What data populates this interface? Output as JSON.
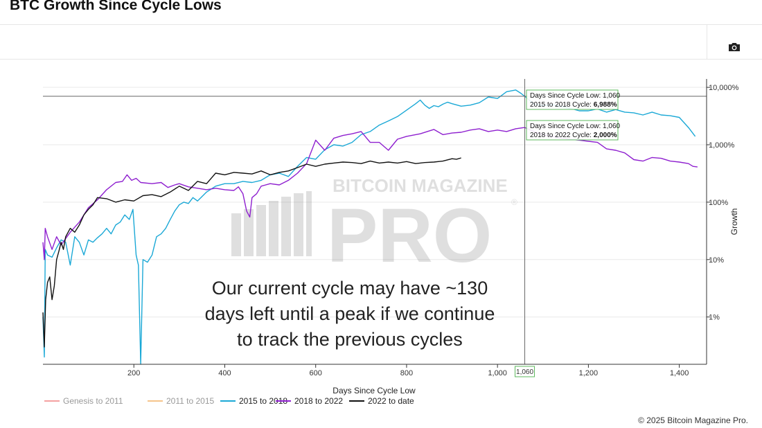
{
  "page": {
    "title": "BTC Growth Since Cycle Lows",
    "footer": "© 2025 Bitcoin Magazine Pro."
  },
  "toolbar": {
    "camera_icon": "camera-icon"
  },
  "watermark": {
    "line1": "BITCOIN MAGAZINE",
    "line2": "PRO",
    "mark": "®"
  },
  "annotation": {
    "lines": [
      "Our current cycle may have ~130",
      "days left until a peak if we continue",
      "to track the previous cycles"
    ]
  },
  "tooltips": [
    {
      "line1": "Days Since Cycle Low: 1,060",
      "line2_prefix": "2015 to 2018 Cycle: ",
      "line2_value": "6,988%"
    },
    {
      "line1": "Days Since Cycle Low: 1,060",
      "line2_prefix": "2018 to 2022 Cycle: ",
      "line2_value": "2,000%"
    }
  ],
  "chart_data": {
    "type": "line",
    "xlabel": "Days Since Cycle Low",
    "ylabel": "Growth",
    "y_scale": "log",
    "xlim": [
      0,
      1460
    ],
    "ylim": [
      0.15,
      14000
    ],
    "x_ticks": [
      200,
      400,
      600,
      800,
      1000,
      1200,
      1400
    ],
    "x_tick_labels": [
      "200",
      "400",
      "600",
      "800",
      "1,000",
      "1,200",
      "1,400"
    ],
    "y_ticks": [
      1,
      10,
      100,
      1000,
      10000
    ],
    "y_tick_labels": [
      "1%",
      "10%",
      "100%",
      "1,000%",
      "10,000%"
    ],
    "y_axis_side": "right",
    "grid": true,
    "crosshair": {
      "x": 1060,
      "x_label": "1,060",
      "y": 6988
    },
    "legend_position": "bottom-left",
    "series": [
      {
        "name": "Genesis to 2011",
        "color": "#f4a0a0",
        "points": []
      },
      {
        "name": "2011 to 2015",
        "color": "#f5c48a",
        "points": []
      },
      {
        "name": "2015 to 2018",
        "color": "#1aa8d6",
        "points": [
          [
            0,
            1
          ],
          [
            3,
            0.2
          ],
          [
            5,
            15
          ],
          [
            10,
            12
          ],
          [
            20,
            11
          ],
          [
            30,
            16
          ],
          [
            40,
            22
          ],
          [
            50,
            20
          ],
          [
            60,
            8
          ],
          [
            70,
            25
          ],
          [
            80,
            20
          ],
          [
            90,
            12
          ],
          [
            100,
            22
          ],
          [
            110,
            20
          ],
          [
            120,
            24
          ],
          [
            130,
            28
          ],
          [
            140,
            35
          ],
          [
            150,
            28
          ],
          [
            160,
            40
          ],
          [
            170,
            45
          ],
          [
            180,
            60
          ],
          [
            190,
            50
          ],
          [
            198,
            75
          ],
          [
            205,
            12
          ],
          [
            210,
            8
          ],
          [
            215,
            0.15
          ],
          [
            220,
            10
          ],
          [
            230,
            9
          ],
          [
            240,
            12
          ],
          [
            250,
            25
          ],
          [
            260,
            28
          ],
          [
            270,
            35
          ],
          [
            280,
            50
          ],
          [
            290,
            70
          ],
          [
            300,
            90
          ],
          [
            310,
            100
          ],
          [
            320,
            95
          ],
          [
            330,
            120
          ],
          [
            340,
            105
          ],
          [
            360,
            150
          ],
          [
            380,
            190
          ],
          [
            400,
            210
          ],
          [
            420,
            210
          ],
          [
            440,
            230
          ],
          [
            460,
            220
          ],
          [
            480,
            240
          ],
          [
            500,
            300
          ],
          [
            520,
            320
          ],
          [
            540,
            280
          ],
          [
            560,
            420
          ],
          [
            580,
            600
          ],
          [
            600,
            560
          ],
          [
            620,
            820
          ],
          [
            640,
            1000
          ],
          [
            660,
            950
          ],
          [
            680,
            1100
          ],
          [
            700,
            1500
          ],
          [
            720,
            1700
          ],
          [
            740,
            2200
          ],
          [
            760,
            2600
          ],
          [
            780,
            3100
          ],
          [
            800,
            4000
          ],
          [
            820,
            5200
          ],
          [
            830,
            6000
          ],
          [
            840,
            4900
          ],
          [
            850,
            4300
          ],
          [
            860,
            4800
          ],
          [
            870,
            4600
          ],
          [
            880,
            5100
          ],
          [
            890,
            5500
          ],
          [
            900,
            5200
          ],
          [
            920,
            4700
          ],
          [
            940,
            4900
          ],
          [
            960,
            5400
          ],
          [
            980,
            6800
          ],
          [
            1000,
            6400
          ],
          [
            1020,
            8400
          ],
          [
            1040,
            9000
          ],
          [
            1050,
            8000
          ],
          [
            1060,
            6988
          ],
          [
            1080,
            5100
          ],
          [
            1100,
            4800
          ],
          [
            1120,
            5000
          ],
          [
            1140,
            4600
          ],
          [
            1160,
            4300
          ],
          [
            1180,
            3900
          ],
          [
            1200,
            3900
          ],
          [
            1220,
            4200
          ],
          [
            1240,
            3700
          ],
          [
            1260,
            4100
          ],
          [
            1280,
            3700
          ],
          [
            1300,
            3600
          ],
          [
            1320,
            3300
          ],
          [
            1340,
            3700
          ],
          [
            1360,
            3300
          ],
          [
            1380,
            3200
          ],
          [
            1400,
            3000
          ],
          [
            1420,
            2000
          ],
          [
            1435,
            1400
          ]
        ]
      },
      {
        "name": "2018 to 2022",
        "color": "#8e1fcf",
        "points": [
          [
            0,
            20
          ],
          [
            3,
            10
          ],
          [
            5,
            35
          ],
          [
            10,
            25
          ],
          [
            20,
            15
          ],
          [
            30,
            25
          ],
          [
            40,
            18
          ],
          [
            60,
            30
          ],
          [
            80,
            45
          ],
          [
            100,
            80
          ],
          [
            120,
            110
          ],
          [
            140,
            165
          ],
          [
            160,
            220
          ],
          [
            175,
            230
          ],
          [
            185,
            300
          ],
          [
            195,
            240
          ],
          [
            205,
            260
          ],
          [
            215,
            220
          ],
          [
            240,
            210
          ],
          [
            260,
            220
          ],
          [
            275,
            180
          ],
          [
            290,
            200
          ],
          [
            300,
            210
          ],
          [
            320,
            185
          ],
          [
            340,
            175
          ],
          [
            360,
            165
          ],
          [
            380,
            175
          ],
          [
            400,
            165
          ],
          [
            420,
            160
          ],
          [
            430,
            185
          ],
          [
            440,
            140
          ],
          [
            448,
            70
          ],
          [
            455,
            55
          ],
          [
            460,
            120
          ],
          [
            470,
            140
          ],
          [
            480,
            190
          ],
          [
            500,
            210
          ],
          [
            520,
            200
          ],
          [
            540,
            240
          ],
          [
            560,
            320
          ],
          [
            580,
            470
          ],
          [
            600,
            1200
          ],
          [
            620,
            800
          ],
          [
            640,
            1300
          ],
          [
            660,
            1450
          ],
          [
            680,
            1550
          ],
          [
            700,
            1700
          ],
          [
            720,
            1100
          ],
          [
            740,
            1100
          ],
          [
            760,
            800
          ],
          [
            780,
            1250
          ],
          [
            800,
            1400
          ],
          [
            830,
            1550
          ],
          [
            860,
            1850
          ],
          [
            880,
            1500
          ],
          [
            900,
            1600
          ],
          [
            920,
            1650
          ],
          [
            940,
            1800
          ],
          [
            960,
            1900
          ],
          [
            980,
            1700
          ],
          [
            1000,
            1800
          ],
          [
            1020,
            1700
          ],
          [
            1040,
            1900
          ],
          [
            1060,
            2000
          ],
          [
            1080,
            1700
          ],
          [
            1100,
            1500
          ],
          [
            1120,
            1400
          ],
          [
            1140,
            1300
          ],
          [
            1160,
            1250
          ],
          [
            1180,
            1200
          ],
          [
            1200,
            1150
          ],
          [
            1220,
            1100
          ],
          [
            1240,
            850
          ],
          [
            1260,
            800
          ],
          [
            1280,
            720
          ],
          [
            1300,
            550
          ],
          [
            1320,
            520
          ],
          [
            1340,
            600
          ],
          [
            1360,
            580
          ],
          [
            1380,
            520
          ],
          [
            1400,
            500
          ],
          [
            1420,
            470
          ],
          [
            1430,
            420
          ],
          [
            1440,
            410
          ]
        ]
      },
      {
        "name": "2022 to date",
        "color": "#111111",
        "points": [
          [
            0,
            1.2
          ],
          [
            3,
            0.3
          ],
          [
            6,
            2
          ],
          [
            10,
            4
          ],
          [
            15,
            5
          ],
          [
            20,
            2
          ],
          [
            25,
            3.5
          ],
          [
            30,
            10
          ],
          [
            35,
            14
          ],
          [
            40,
            20
          ],
          [
            45,
            15
          ],
          [
            50,
            25
          ],
          [
            60,
            35
          ],
          [
            70,
            30
          ],
          [
            80,
            40
          ],
          [
            90,
            60
          ],
          [
            100,
            75
          ],
          [
            110,
            90
          ],
          [
            120,
            120
          ],
          [
            140,
            115
          ],
          [
            160,
            100
          ],
          [
            180,
            110
          ],
          [
            200,
            105
          ],
          [
            220,
            130
          ],
          [
            240,
            135
          ],
          [
            260,
            125
          ],
          [
            280,
            150
          ],
          [
            300,
            190
          ],
          [
            320,
            160
          ],
          [
            340,
            230
          ],
          [
            360,
            210
          ],
          [
            380,
            320
          ],
          [
            400,
            300
          ],
          [
            420,
            330
          ],
          [
            440,
            320
          ],
          [
            460,
            310
          ],
          [
            480,
            350
          ],
          [
            500,
            300
          ],
          [
            520,
            330
          ],
          [
            540,
            350
          ],
          [
            560,
            400
          ],
          [
            580,
            460
          ],
          [
            600,
            420
          ],
          [
            620,
            460
          ],
          [
            640,
            480
          ],
          [
            660,
            500
          ],
          [
            680,
            490
          ],
          [
            700,
            470
          ],
          [
            720,
            520
          ],
          [
            740,
            480
          ],
          [
            760,
            500
          ],
          [
            780,
            480
          ],
          [
            800,
            510
          ],
          [
            820,
            470
          ],
          [
            840,
            490
          ],
          [
            860,
            500
          ],
          [
            880,
            520
          ],
          [
            900,
            570
          ],
          [
            910,
            560
          ],
          [
            920,
            590
          ]
        ]
      }
    ]
  }
}
